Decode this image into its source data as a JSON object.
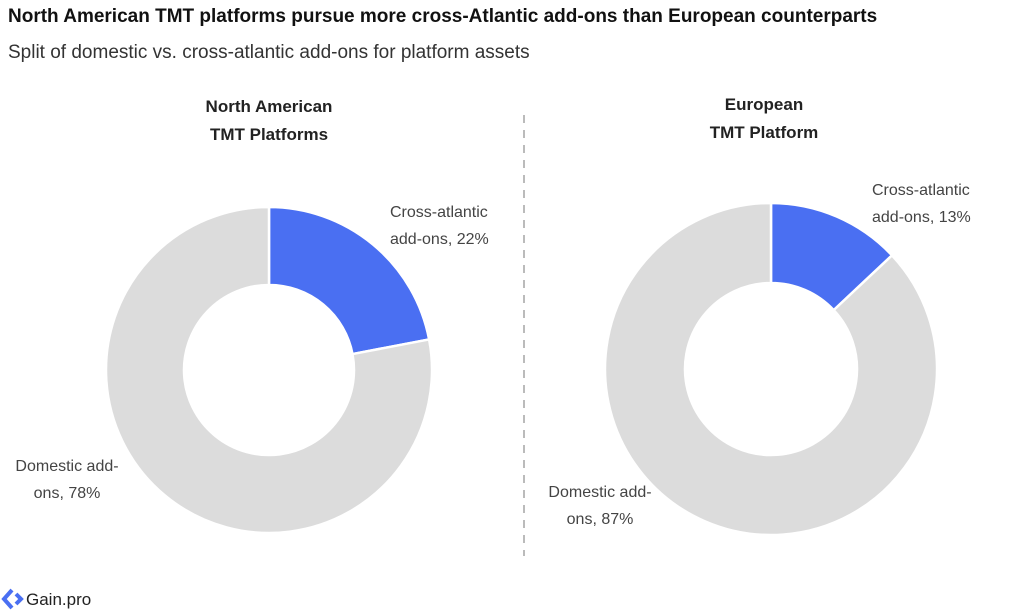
{
  "title": "North American TMT platforms pursue more cross-Atlantic add-ons than European counterparts",
  "subtitle": "Split of domestic vs. cross-atlantic add-ons for platform assets",
  "logo": "Gain.pro",
  "chart_data": [
    {
      "type": "pie",
      "title": [
        "North American",
        "TMT Platforms"
      ],
      "values": [
        22,
        78
      ],
      "value_labels": [
        "Cross-atlantic add-ons, 22%",
        "Domestic add-ons, 78%"
      ],
      "colors": [
        "#4a6ff2",
        "#dcdcdc"
      ]
    },
    {
      "type": "pie",
      "title": [
        "European",
        "TMT Platform"
      ],
      "values": [
        13,
        87
      ],
      "value_labels": [
        "Cross-atlantic add-ons, 13%",
        "Domestic add-ons, 87%"
      ],
      "colors": [
        "#4a6ff2",
        "#dcdcdc"
      ]
    }
  ]
}
